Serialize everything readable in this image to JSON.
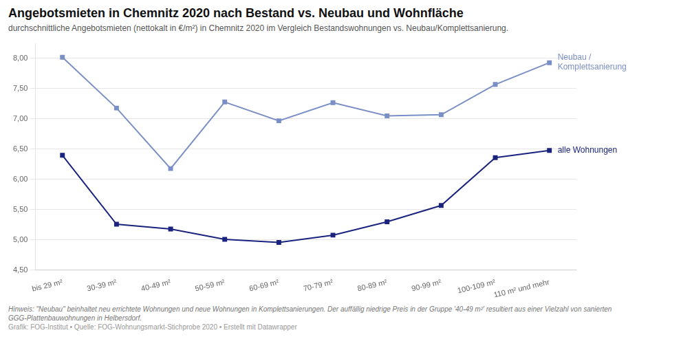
{
  "chart_data": {
    "type": "line",
    "title": "Angebotsmieten in Chemnitz 2020 nach Bestand vs. Neubau und Wohnfläche",
    "subtitle": "durchschnittliche Angebotsmieten (nettokalt in €/m²) in Chemnitz 2020 im Vergleich Bestandswohnungen vs. Neubau/Komplettsanierung.",
    "footnotes": [
      "Hinweis: \"Neubau\" beinhaltet neu errichtete Wohnungen und neue Wohnungen in Komplettsanierungen. Der auffällig niedrige Preis in der Gruppe '40-49 m²' resultiert aus einer Vielzahl von sanierten",
      "GGG-Plattenbauwohnungen in Helbersdorf.",
      "Grafik: FOG-Institut • Quelle: FOG-Wohnungsmarkt-Stichprobe 2020 • Erstellt mit Datawrapper"
    ],
    "categories": [
      "bis 29 m²",
      "30-39 m²",
      "40-49 m²",
      "50-59 m²",
      "60-69 m²",
      "70-79 m²",
      "80-89 m²",
      "90-99 m²",
      "100-109 m²",
      "110 m² und mehr"
    ],
    "series": [
      {
        "name": "Neubau /\nKomplettsanierung",
        "color": "#7b8fc7",
        "marker": "square",
        "values": [
          8.02,
          7.18,
          6.18,
          7.28,
          6.97,
          7.27,
          7.05,
          7.07,
          7.57,
          7.93
        ]
      },
      {
        "name": "alle Wohnungen",
        "color": "#1a237e",
        "marker": "square",
        "values": [
          6.4,
          5.26,
          5.18,
          5.01,
          4.96,
          5.08,
          5.3,
          5.57,
          6.36,
          6.48
        ]
      }
    ],
    "ylim": [
      4.5,
      8.25
    ],
    "yticks": [
      {
        "value": 4.5,
        "label": "4,50"
      },
      {
        "value": 5.0,
        "label": "5,00"
      },
      {
        "value": 5.5,
        "label": "5,50"
      },
      {
        "value": 6.0,
        "label": "6,00"
      },
      {
        "value": 6.5,
        "label": "6,50"
      },
      {
        "value": 7.0,
        "label": "7,00"
      },
      {
        "value": 7.5,
        "label": "7,50"
      },
      {
        "value": 8.0,
        "label": "8,00"
      }
    ],
    "grid": true
  }
}
